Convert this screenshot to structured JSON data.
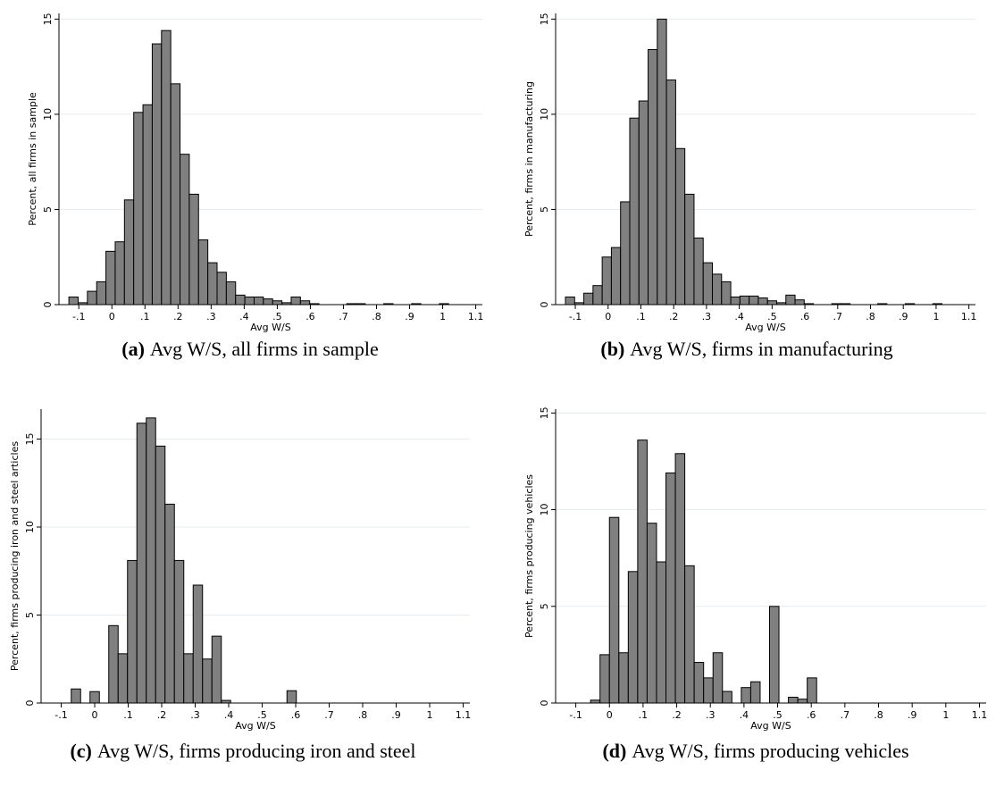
{
  "chart_data": [
    {
      "type": "histogram",
      "xlabel": "Avg W/S",
      "ylabel": "Percent, all firms in sample",
      "caption_label": "(a)",
      "caption": "Avg W/S, all firms in sample",
      "color": "#808080",
      "grid": true,
      "bins": [
        -0.13,
        -0.102,
        -0.074,
        -0.046,
        -0.018,
        0.01,
        0.038,
        0.066,
        0.094,
        0.122,
        0.15,
        0.178,
        0.206,
        0.234,
        0.262,
        0.29,
        0.318,
        0.346,
        0.374,
        0.402,
        0.43,
        0.458,
        0.486,
        0.514,
        0.542,
        0.57,
        0.598,
        0.626,
        0.654,
        0.682,
        0.71,
        0.738,
        0.766,
        0.794,
        0.822,
        0.85,
        0.878,
        0.906,
        0.934,
        0.962,
        0.99,
        1.018,
        1.046
      ],
      "values": [
        0.4,
        0.1,
        0.7,
        1.2,
        2.8,
        3.3,
        5.5,
        10.1,
        10.5,
        13.7,
        14.4,
        11.6,
        7.9,
        5.8,
        3.4,
        2.2,
        1.7,
        1.2,
        0.5,
        0.4,
        0.4,
        0.3,
        0.2,
        0.1,
        0.4,
        0.2,
        0.05,
        0,
        0,
        0,
        0.05,
        0.05,
        0,
        0,
        0.05,
        0,
        0,
        0.05,
        0,
        0,
        0.05,
        0
      ],
      "xlim": [
        -0.16,
        1.12
      ],
      "ylim": [
        0,
        15.3
      ],
      "xticks": [
        {
          "value": -0.1,
          "label": "-.1"
        },
        0,
        {
          "value": 0.1,
          "label": ".1"
        },
        {
          "value": 0.2,
          "label": ".2"
        },
        {
          "value": 0.3,
          "label": ".3"
        },
        {
          "value": 0.4,
          "label": ".4"
        },
        {
          "value": 0.5,
          "label": ".5"
        },
        {
          "value": 0.6,
          "label": ".6"
        },
        {
          "value": 0.7,
          "label": ".7"
        },
        {
          "value": 0.8,
          "label": ".8"
        },
        {
          "value": 0.9,
          "label": ".9"
        },
        1,
        1.1
      ],
      "yticks": [
        0,
        5,
        10,
        15
      ]
    },
    {
      "type": "histogram",
      "xlabel": "Avg W/S",
      "ylabel": "Percent, firms in manufacturing",
      "caption_label": "(b)",
      "caption": "Avg W/S, firms in manufacturing",
      "color": "#808080",
      "grid": true,
      "bins": [
        -0.13,
        -0.102,
        -0.074,
        -0.046,
        -0.018,
        0.01,
        0.038,
        0.066,
        0.094,
        0.122,
        0.15,
        0.178,
        0.206,
        0.234,
        0.262,
        0.29,
        0.318,
        0.346,
        0.374,
        0.402,
        0.43,
        0.458,
        0.486,
        0.514,
        0.542,
        0.57,
        0.598,
        0.626,
        0.654,
        0.682,
        0.71,
        0.738,
        0.766,
        0.794,
        0.822,
        0.85,
        0.878,
        0.906,
        0.934,
        0.962,
        0.99,
        1.018,
        1.046
      ],
      "values": [
        0.4,
        0.1,
        0.6,
        1.0,
        2.5,
        3.0,
        5.4,
        9.8,
        10.7,
        13.4,
        15.0,
        11.8,
        8.2,
        5.8,
        3.5,
        2.2,
        1.6,
        1.2,
        0.4,
        0.45,
        0.45,
        0.35,
        0.2,
        0.1,
        0.5,
        0.25,
        0.05,
        0,
        0,
        0.05,
        0.05,
        0,
        0,
        0,
        0.05,
        0,
        0,
        0.05,
        0,
        0,
        0.05,
        0
      ],
      "xlim": [
        -0.16,
        1.12
      ],
      "ylim": [
        0,
        15.3
      ],
      "xticks": [
        {
          "value": -0.1,
          "label": "-.1"
        },
        0,
        {
          "value": 0.1,
          "label": ".1"
        },
        {
          "value": 0.2,
          "label": ".2"
        },
        {
          "value": 0.3,
          "label": ".3"
        },
        {
          "value": 0.4,
          "label": ".4"
        },
        {
          "value": 0.5,
          "label": ".5"
        },
        {
          "value": 0.6,
          "label": ".6"
        },
        {
          "value": 0.7,
          "label": ".7"
        },
        {
          "value": 0.8,
          "label": ".8"
        },
        {
          "value": 0.9,
          "label": ".9"
        },
        1,
        1.1
      ],
      "yticks": [
        0,
        5,
        10,
        15
      ]
    },
    {
      "type": "histogram",
      "xlabel": "Avg W/S",
      "ylabel": "Percent, firms producing iron and steel articles",
      "caption_label": "(c)",
      "caption": "Avg W/S, firms producing iron and steel",
      "color": "#808080",
      "grid": true,
      "bins": [
        -0.07,
        -0.042,
        -0.014,
        0.014,
        0.042,
        0.07,
        0.098,
        0.126,
        0.154,
        0.182,
        0.21,
        0.238,
        0.266,
        0.294,
        0.322,
        0.35,
        0.378,
        0.406,
        0.434,
        0.462,
        0.49,
        0.518,
        0.546,
        0.574,
        0.602
      ],
      "values": [
        0.8,
        0,
        0.65,
        0,
        4.4,
        2.8,
        8.1,
        15.9,
        16.2,
        14.6,
        11.3,
        8.1,
        2.8,
        6.7,
        2.5,
        3.8,
        0.15,
        0,
        0,
        0,
        0,
        0,
        0,
        0.7
      ],
      "xlim": [
        -0.16,
        1.12
      ],
      "ylim": [
        0,
        16.7
      ],
      "xticks": [
        {
          "value": -0.1,
          "label": "-.1"
        },
        0,
        {
          "value": 0.1,
          "label": ".1"
        },
        {
          "value": 0.2,
          "label": ".2"
        },
        {
          "value": 0.3,
          "label": ".3"
        },
        {
          "value": 0.4,
          "label": ".4"
        },
        {
          "value": 0.5,
          "label": ".5"
        },
        {
          "value": 0.6,
          "label": ".6"
        },
        {
          "value": 0.7,
          "label": ".7"
        },
        {
          "value": 0.8,
          "label": ".8"
        },
        {
          "value": 0.9,
          "label": ".9"
        },
        1,
        1.1
      ],
      "yticks": [
        0,
        5,
        10,
        15
      ]
    },
    {
      "type": "histogram",
      "xlabel": "Avg W/S",
      "ylabel": "Percent, firms producing vehicles",
      "caption_label": "(d)",
      "caption": "Avg W/S, firms producing vehicles",
      "color": "#808080",
      "grid": true,
      "bins": [
        -0.056,
        -0.028,
        0,
        0.028,
        0.056,
        0.084,
        0.112,
        0.14,
        0.168,
        0.196,
        0.224,
        0.252,
        0.28,
        0.308,
        0.336,
        0.364,
        0.392,
        0.42,
        0.448,
        0.476,
        0.504,
        0.532,
        0.56,
        0.588,
        0.616
      ],
      "values": [
        0.15,
        2.5,
        9.6,
        2.6,
        6.8,
        13.6,
        9.3,
        7.3,
        11.9,
        12.9,
        7.1,
        2.1,
        1.3,
        2.6,
        0.6,
        0,
        0.8,
        1.1,
        0,
        5.0,
        0,
        0.3,
        0.2,
        1.3
      ],
      "xlim": [
        -0.16,
        1.12
      ],
      "ylim": [
        0,
        15.2
      ],
      "xticks": [
        {
          "value": -0.1,
          "label": "-.1"
        },
        0,
        {
          "value": 0.1,
          "label": ".1"
        },
        {
          "value": 0.2,
          "label": ".2"
        },
        {
          "value": 0.3,
          "label": ".3"
        },
        {
          "value": 0.4,
          "label": ".4"
        },
        {
          "value": 0.5,
          "label": ".5"
        },
        {
          "value": 0.6,
          "label": ".6"
        },
        {
          "value": 0.7,
          "label": ".7"
        },
        {
          "value": 0.8,
          "label": ".8"
        },
        {
          "value": 0.9,
          "label": ".9"
        },
        1,
        1.1
      ],
      "yticks": [
        0,
        5,
        10,
        15
      ]
    }
  ]
}
